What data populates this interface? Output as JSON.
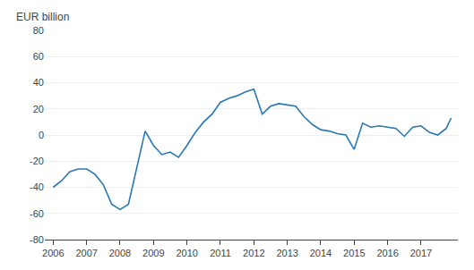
{
  "chart_data": {
    "type": "line",
    "ylabel": "EUR billion",
    "color": "#2878b4",
    "x": [
      2006.0,
      2006.25,
      2006.5,
      2006.75,
      2007.0,
      2007.25,
      2007.5,
      2007.75,
      2008.0,
      2008.25,
      2008.5,
      2008.75,
      2009.0,
      2009.25,
      2009.5,
      2009.75,
      2010.0,
      2010.25,
      2010.5,
      2010.75,
      2011.0,
      2011.25,
      2011.5,
      2011.75,
      2012.0,
      2012.25,
      2012.5,
      2012.75,
      2013.0,
      2013.25,
      2013.5,
      2013.75,
      2014.0,
      2014.25,
      2014.5,
      2014.75,
      2015.0,
      2015.25,
      2015.5,
      2015.75,
      2016.0,
      2016.25,
      2016.5,
      2016.75,
      2017.0,
      2017.25,
      2017.5,
      2017.75,
      2017.9
    ],
    "values": [
      -40,
      -35,
      -28,
      -26,
      -26,
      -30,
      -38,
      -53,
      -57,
      -53,
      -25,
      3,
      -8,
      -15,
      -13,
      -17,
      -8,
      2,
      10,
      16,
      25,
      28,
      30,
      33,
      35,
      16,
      22,
      24,
      23,
      22,
      14,
      8,
      4,
      3,
      1,
      0,
      -11,
      9,
      6,
      7,
      6,
      5,
      -1,
      6,
      7,
      2,
      0,
      5,
      13
    ],
    "xlim": [
      2005.75,
      2018.1
    ],
    "xticks": [
      2006,
      2007,
      2008,
      2009,
      2010,
      2011,
      2012,
      2013,
      2014,
      2015,
      2016,
      2017
    ],
    "ylim": [
      -80,
      80
    ],
    "yticks": [
      -80,
      -60,
      -40,
      -20,
      0,
      20,
      40,
      60,
      80
    ],
    "grid": true
  }
}
